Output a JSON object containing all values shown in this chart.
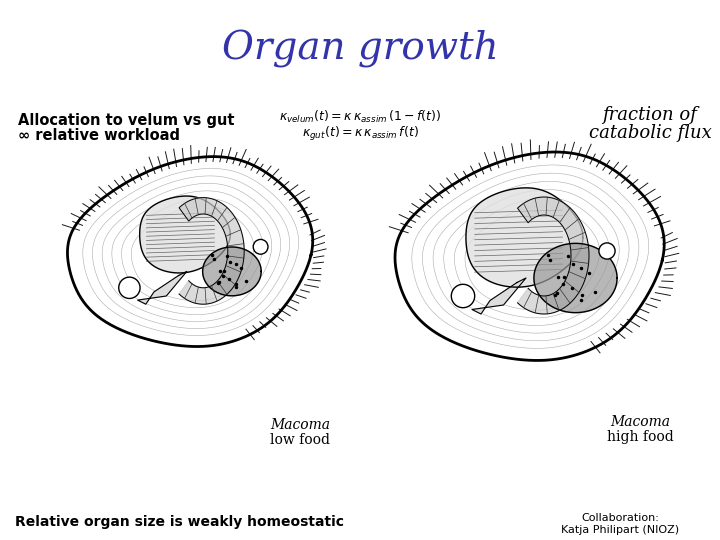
{
  "title": "Organ growth",
  "title_color": "#3333AA",
  "title_fontsize": 28,
  "bg_color": "#FFFFFF",
  "left_label1": "Allocation to velum vs gut",
  "left_label2": "∞ relative workload",
  "right_label1": "fraction of",
  "right_label2": "catabolic flux",
  "macoma_low_label": "Macoma",
  "macoma_low_sub": "low food",
  "macoma_high_label": "Macoma",
  "macoma_high_sub": "high food",
  "bottom_left_text": "Relative organ size is weakly homeostatic",
  "collab_text1": "Collaboration:",
  "collab_text2": "Katja Philipart (NIOZ)",
  "text_color": "#000000"
}
